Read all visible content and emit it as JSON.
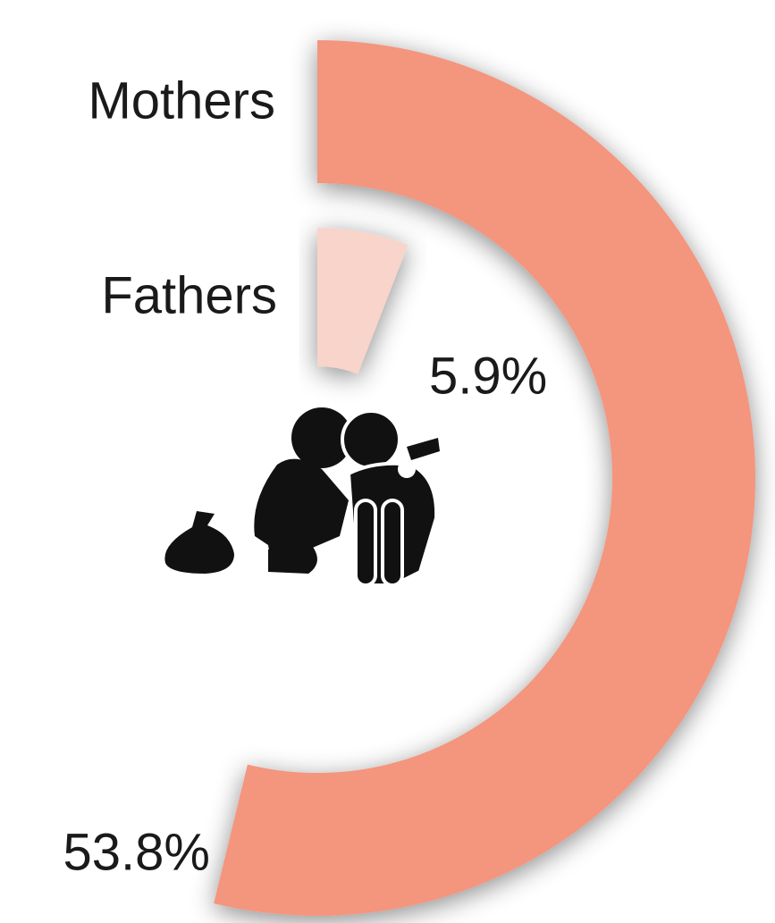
{
  "chart_data": {
    "type": "radial_bar",
    "categories": [
      "Mothers",
      "Fathers"
    ],
    "values": [
      53.8,
      5.9
    ],
    "value_labels": [
      "53.8%",
      "5.9%"
    ],
    "colors": [
      "#f4957e",
      "#f8d4cb"
    ],
    "max": 100
  }
}
